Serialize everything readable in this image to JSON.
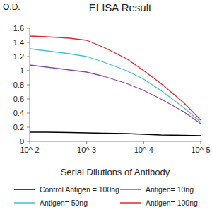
{
  "chart_data": {
    "type": "line",
    "title": "ELISA Result",
    "y_label": "O.D.",
    "x_label": "Serial Dilutions of Antibody",
    "log": "x",
    "grid": false,
    "legend": "bottom",
    "x": [
      0.01,
      0.005,
      0.002,
      0.001,
      0.0005,
      0.0002,
      0.0001,
      5e-05,
      2e-05,
      1e-05
    ],
    "xlim": [
      0.01,
      1e-05
    ],
    "xticks": [
      {
        "value": 0.01,
        "label": "10^-2"
      },
      {
        "value": 0.001,
        "label": "10^-3"
      },
      {
        "value": 0.0001,
        "label": "10^-4"
      },
      {
        "value": 1e-05,
        "label": "10^-5"
      }
    ],
    "ylim": [
      0,
      1.6
    ],
    "yticks": [
      0,
      0.2,
      0.4,
      0.6,
      0.8,
      1,
      1.2,
      1.4,
      1.6
    ],
    "series": [
      {
        "name": "Control Antigen = 100ng",
        "color": "#000000",
        "values": [
          0.13,
          0.13,
          0.125,
          0.12,
          0.115,
          0.11,
          0.1,
          0.09,
          0.085,
          0.08
        ]
      },
      {
        "name": "Antigen= 10ng",
        "color": "#8a4aa8",
        "values": [
          1.08,
          1.05,
          1.01,
          0.98,
          0.92,
          0.82,
          0.72,
          0.6,
          0.42,
          0.25
        ]
      },
      {
        "name": "Antigen= 50ng",
        "color": "#3fc2d2",
        "values": [
          1.31,
          1.28,
          1.24,
          1.2,
          1.12,
          1.0,
          0.88,
          0.72,
          0.48,
          0.27
        ]
      },
      {
        "name": "Antigen= 100ng",
        "color": "#e02828",
        "values": [
          1.49,
          1.48,
          1.46,
          1.43,
          1.33,
          1.17,
          1.0,
          0.82,
          0.55,
          0.3
        ]
      }
    ]
  }
}
